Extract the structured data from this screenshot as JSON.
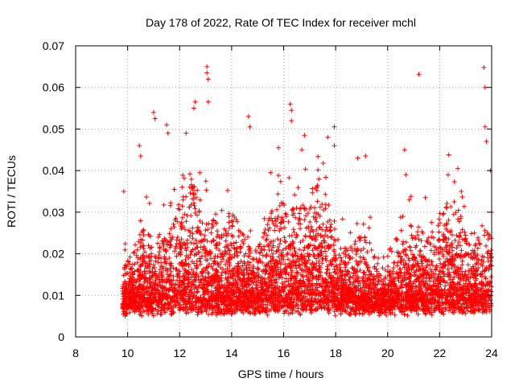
{
  "chart_data": {
    "type": "scatter",
    "title": "Day 178 of 2022, Rate Of TEC Index for receiver mchl",
    "xlabel": "GPS time / hours",
    "ylabel": "ROTI / TECUs",
    "xlim": [
      8,
      24
    ],
    "ylim": [
      0,
      0.07
    ],
    "x_ticks": [
      8,
      10,
      12,
      14,
      16,
      18,
      20,
      22,
      24
    ],
    "x_tick_labels": [
      "8",
      "10",
      "12",
      "14",
      "16",
      "18",
      "20",
      "22",
      "24"
    ],
    "y_ticks": [
      0,
      0.01,
      0.02,
      0.03,
      0.04,
      0.05,
      0.06,
      0.07
    ],
    "y_tick_labels": [
      "0",
      "0.01",
      "0.02",
      "0.03",
      "0.04",
      "0.05",
      "0.06",
      "0.07"
    ],
    "grid": true,
    "marker": "+",
    "color": "#ff0000",
    "data_range": {
      "x_start": 9.8,
      "x_end": 24.0
    },
    "notable_points": [
      {
        "x": 13.05,
        "y": 0.065
      },
      {
        "x": 13.05,
        "y": 0.0635
      },
      {
        "x": 13.1,
        "y": 0.062
      },
      {
        "x": 13.1,
        "y": 0.0565
      },
      {
        "x": 12.6,
        "y": 0.0565
      },
      {
        "x": 12.55,
        "y": 0.055
      },
      {
        "x": 11.0,
        "y": 0.054
      },
      {
        "x": 11.05,
        "y": 0.0525
      },
      {
        "x": 11.5,
        "y": 0.051
      },
      {
        "x": 11.55,
        "y": 0.049
      },
      {
        "x": 12.25,
        "y": 0.049
      },
      {
        "x": 14.65,
        "y": 0.053
      },
      {
        "x": 14.7,
        "y": 0.0505
      },
      {
        "x": 16.25,
        "y": 0.056
      },
      {
        "x": 16.3,
        "y": 0.0545
      },
      {
        "x": 16.3,
        "y": 0.052
      },
      {
        "x": 16.8,
        "y": 0.0485
      },
      {
        "x": 17.7,
        "y": 0.048
      },
      {
        "x": 17.95,
        "y": 0.0505
      },
      {
        "x": 17.95,
        "y": 0.046
      },
      {
        "x": 15.8,
        "y": 0.0455
      },
      {
        "x": 16.7,
        "y": 0.045
      },
      {
        "x": 10.45,
        "y": 0.046
      },
      {
        "x": 10.5,
        "y": 0.0435
      },
      {
        "x": 19.15,
        "y": 0.0435
      },
      {
        "x": 18.85,
        "y": 0.043
      },
      {
        "x": 20.65,
        "y": 0.045
      },
      {
        "x": 21.2,
        "y": 0.0632
      },
      {
        "x": 23.7,
        "y": 0.0648
      },
      {
        "x": 23.75,
        "y": 0.06
      },
      {
        "x": 23.75,
        "y": 0.0505
      },
      {
        "x": 23.8,
        "y": 0.047
      },
      {
        "x": 22.35,
        "y": 0.0438
      },
      {
        "x": 22.7,
        "y": 0.0405
      },
      {
        "x": 23.95,
        "y": 0.04
      },
      {
        "x": 15.5,
        "y": 0.0395
      },
      {
        "x": 21.45,
        "y": 0.0335
      },
      {
        "x": 20.7,
        "y": 0.039
      },
      {
        "x": 9.85,
        "y": 0.035
      },
      {
        "x": 9.9,
        "y": 0.005
      }
    ]
  }
}
